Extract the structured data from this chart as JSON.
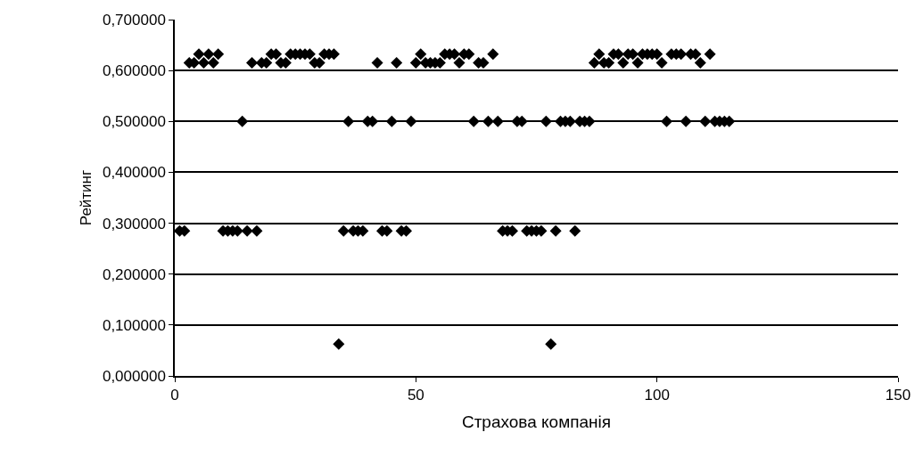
{
  "chart_data": {
    "type": "scatter",
    "xlabel": "Страхова компанія",
    "ylabel": "Рейтинг",
    "x": [
      1,
      2,
      3,
      4,
      5,
      6,
      7,
      8,
      9,
      10,
      11,
      12,
      13,
      14,
      15,
      16,
      17,
      18,
      19,
      20,
      21,
      22,
      23,
      24,
      25,
      26,
      27,
      28,
      29,
      30,
      31,
      32,
      33,
      34,
      35,
      36,
      37,
      38,
      39,
      40,
      41,
      42,
      43,
      44,
      45,
      46,
      47,
      48,
      49,
      50,
      51,
      52,
      53,
      54,
      55,
      56,
      57,
      58,
      59,
      60,
      61,
      62,
      63,
      64,
      65,
      66,
      67,
      68,
      69,
      70,
      71,
      72,
      73,
      74,
      75,
      76,
      77,
      78,
      79,
      80,
      81,
      82,
      83,
      84,
      85,
      86,
      87,
      88,
      89,
      90,
      91,
      92,
      93,
      94,
      95,
      96,
      97,
      98,
      99,
      100,
      101,
      102,
      103,
      104,
      105,
      106,
      107,
      108,
      109,
      110,
      111,
      112,
      113,
      114,
      115
    ],
    "values": [
      0.285,
      0.285,
      0.615,
      0.615,
      0.632,
      0.615,
      0.632,
      0.615,
      0.632,
      0.285,
      0.285,
      0.285,
      0.285,
      0.5,
      0.285,
      0.615,
      0.285,
      0.615,
      0.615,
      0.632,
      0.632,
      0.615,
      0.615,
      0.632,
      0.632,
      0.632,
      0.632,
      0.632,
      0.615,
      0.615,
      0.632,
      0.632,
      0.632,
      0.0625,
      0.285,
      0.5,
      0.285,
      0.285,
      0.285,
      0.5,
      0.5,
      0.615,
      0.285,
      0.285,
      0.5,
      0.615,
      0.285,
      0.285,
      0.5,
      0.615,
      0.632,
      0.615,
      0.615,
      0.615,
      0.615,
      0.632,
      0.632,
      0.632,
      0.615,
      0.632,
      0.632,
      0.5,
      0.615,
      0.615,
      0.5,
      0.632,
      0.5,
      0.285,
      0.285,
      0.285,
      0.5,
      0.5,
      0.285,
      0.285,
      0.285,
      0.285,
      0.5,
      0.0625,
      0.285,
      0.5,
      0.5,
      0.5,
      0.285,
      0.5,
      0.5,
      0.5,
      0.615,
      0.632,
      0.615,
      0.615,
      0.632,
      0.632,
      0.615,
      0.632,
      0.632,
      0.615,
      0.632,
      0.632,
      0.632,
      0.632,
      0.615,
      0.5,
      0.632,
      0.632,
      0.632,
      0.5,
      0.632,
      0.632,
      0.615,
      0.5,
      0.632,
      0.5,
      0.5,
      0.5,
      0.5
    ],
    "color": "#000000",
    "marker": "diamond",
    "grid": "y",
    "xlim": [
      0,
      150
    ],
    "xticks": [
      0,
      50,
      100,
      150
    ],
    "ylim": [
      0,
      0.7
    ],
    "yticks": [
      {
        "value": 0,
        "label": "0,000000"
      },
      {
        "value": 0.1,
        "label": "0,100000"
      },
      {
        "value": 0.2,
        "label": "0,200000"
      },
      {
        "value": 0.3,
        "label": "0,300000"
      },
      {
        "value": 0.4,
        "label": "0,400000"
      },
      {
        "value": 0.5,
        "label": "0,500000"
      },
      {
        "value": 0.6,
        "label": "0,600000"
      },
      {
        "value": 0.7,
        "label": "0,700000"
      }
    ]
  }
}
